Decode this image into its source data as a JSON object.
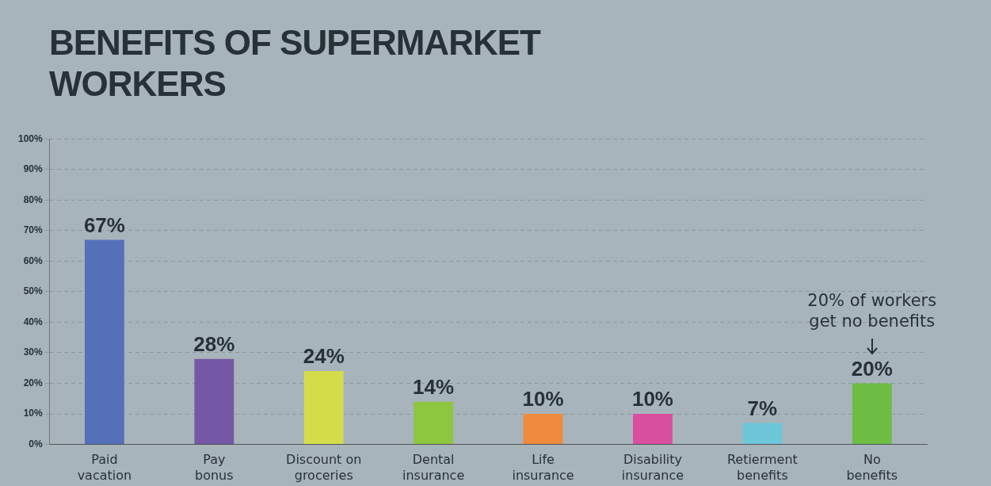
{
  "chart_data": {
    "type": "bar",
    "title": "BENEFITS OF SUPERMARKET WORKERS",
    "categories": [
      "Paid vacation",
      "Pay bonus",
      "Discount on groceries",
      "Dental insurance",
      "Life insurance",
      "Disability insurance",
      "Retierment benefits",
      "No benefits"
    ],
    "values": [
      67,
      28,
      24,
      14,
      10,
      10,
      7,
      20
    ],
    "colors": [
      "#5470b8",
      "#7558a5",
      "#d4dc4a",
      "#8dc63f",
      "#f08a3c",
      "#d94fa0",
      "#6cc7d8",
      "#6dbd45"
    ],
    "value_labels": [
      "67%",
      "28%",
      "24%",
      "14%",
      "10%",
      "10%",
      "7%",
      "20%"
    ],
    "ylim": [
      0,
      100
    ],
    "yticks": [
      {
        "value": 0,
        "label": "0%"
      },
      {
        "value": 10,
        "label": "10%"
      },
      {
        "value": 20,
        "label": "20%"
      },
      {
        "value": 30,
        "label": "30%"
      },
      {
        "value": 40,
        "label": "40%"
      },
      {
        "value": 50,
        "label": "50%"
      },
      {
        "value": 60,
        "label": "60%"
      },
      {
        "value": 70,
        "label": "70%"
      },
      {
        "value": 80,
        "label": "80%"
      },
      {
        "value": 90,
        "label": "90%"
      },
      {
        "value": 100,
        "label": "100%"
      }
    ],
    "grid": "y",
    "legend": false,
    "annotations": [
      "20% of workers get no benefits"
    ]
  }
}
